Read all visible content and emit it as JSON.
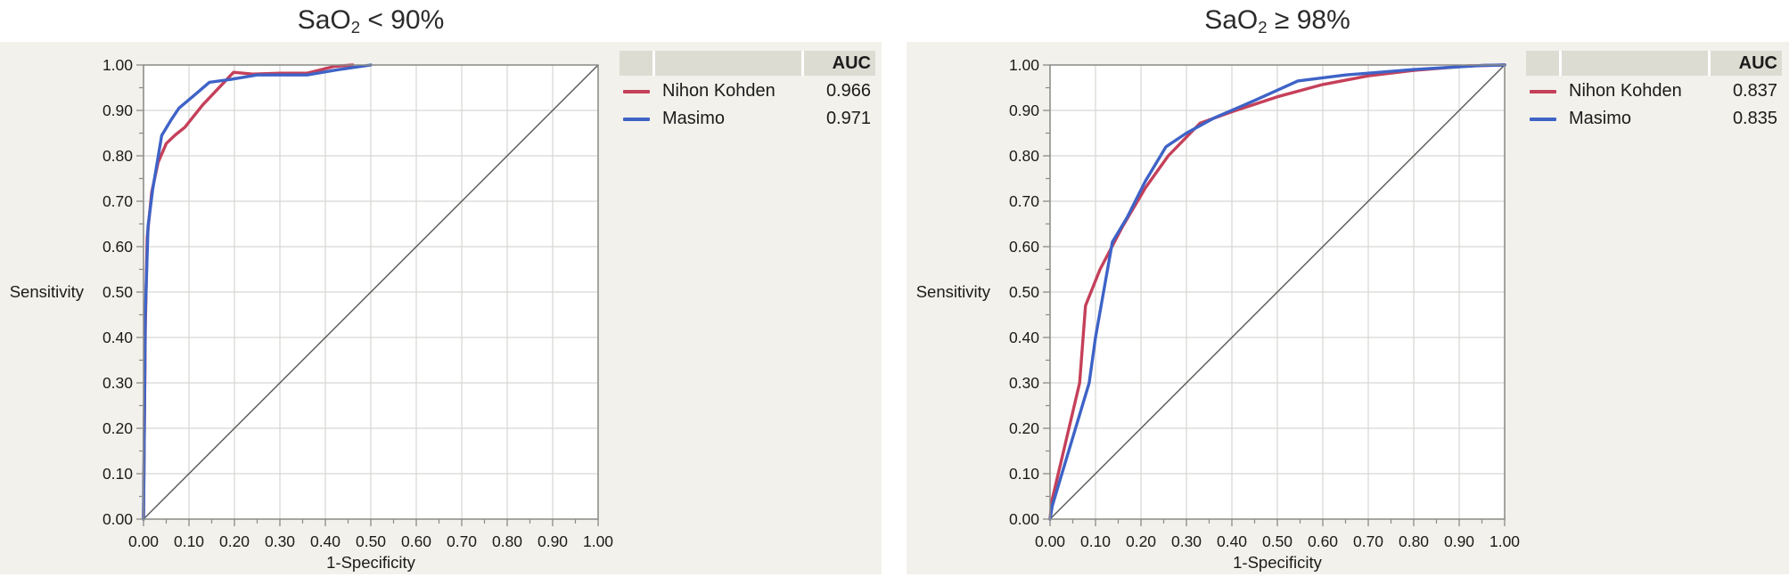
{
  "figure": {
    "background": "#ffffff",
    "panel_background": "#F2F1EB",
    "grid_color": "#D8D8D5",
    "frame_color": "#8B8B87",
    "diagonal_color": "#585858",
    "text_color": "#1b1b1b",
    "legend_header_bg": "#DDDCD3"
  },
  "chart_data": [
    {
      "type": "line",
      "title_base": "SaO",
      "title_sub": "2",
      "title_rest": " < 90%",
      "xlabel": "1-Specificity",
      "ylabel": "Sensitivity",
      "xlim": [
        0,
        1
      ],
      "ylim": [
        0,
        1
      ],
      "grid": true,
      "diagonal_reference": true,
      "legend_position": "right",
      "legend": {
        "auc_header": "AUC"
      },
      "x_ticks": [
        "0.00",
        "0.10",
        "0.20",
        "0.30",
        "0.40",
        "0.50",
        "0.60",
        "0.70",
        "0.80",
        "0.90",
        "1.00"
      ],
      "y_ticks": [
        "0.00",
        "0.10",
        "0.20",
        "0.30",
        "0.40",
        "0.50",
        "0.60",
        "0.70",
        "0.80",
        "0.90",
        "1.00"
      ],
      "series": [
        {
          "name": "Nihon Kohden",
          "auc": "0.966",
          "color": "#C5405A",
          "points": [
            [
              0,
              0
            ],
            [
              0.004,
              0.42
            ],
            [
              0.008,
              0.62
            ],
            [
              0.018,
              0.72
            ],
            [
              0.032,
              0.785
            ],
            [
              0.05,
              0.827
            ],
            [
              0.07,
              0.846
            ],
            [
              0.091,
              0.863
            ],
            [
              0.13,
              0.912
            ],
            [
              0.198,
              0.984
            ],
            [
              0.24,
              0.98
            ],
            [
              0.3,
              0.982
            ],
            [
              0.36,
              0.982
            ],
            [
              0.42,
              0.997
            ],
            [
              0.46,
              1
            ]
          ]
        },
        {
          "name": "Masimo",
          "auc": "0.971",
          "color": "#3E63C7",
          "points": [
            [
              0,
              0
            ],
            [
              0.004,
              0.45
            ],
            [
              0.01,
              0.645
            ],
            [
              0.02,
              0.725
            ],
            [
              0.04,
              0.845
            ],
            [
              0.06,
              0.878
            ],
            [
              0.078,
              0.905
            ],
            [
              0.11,
              0.932
            ],
            [
              0.145,
              0.962
            ],
            [
              0.19,
              0.968
            ],
            [
              0.25,
              0.978
            ],
            [
              0.36,
              0.978
            ],
            [
              0.43,
              0.99
            ],
            [
              0.5,
              1
            ]
          ]
        }
      ]
    },
    {
      "type": "line",
      "title_base": "SaO",
      "title_sub": "2",
      "title_rest": " ≥ 98%",
      "xlabel": "1-Specificity",
      "ylabel": "Sensitivity",
      "xlim": [
        0,
        1
      ],
      "ylim": [
        0,
        1
      ],
      "grid": true,
      "diagonal_reference": true,
      "legend_position": "right",
      "legend": {
        "auc_header": "AUC"
      },
      "x_ticks": [
        "0.00",
        "0.10",
        "0.20",
        "0.30",
        "0.40",
        "0.50",
        "0.60",
        "0.70",
        "0.80",
        "0.90",
        "1.00"
      ],
      "y_ticks": [
        "0.00",
        "0.10",
        "0.20",
        "0.30",
        "0.40",
        "0.50",
        "0.60",
        "0.70",
        "0.80",
        "0.90",
        "1.00"
      ],
      "series": [
        {
          "name": "Nihon Kohden",
          "auc": "0.837",
          "color": "#C5405A",
          "points": [
            [
              0,
              0
            ],
            [
              0.004,
              0.04
            ],
            [
              0.065,
              0.3
            ],
            [
              0.078,
              0.47
            ],
            [
              0.11,
              0.55
            ],
            [
              0.16,
              0.645
            ],
            [
              0.21,
              0.73
            ],
            [
              0.26,
              0.8
            ],
            [
              0.33,
              0.872
            ],
            [
              0.4,
              0.897
            ],
            [
              0.5,
              0.93
            ],
            [
              0.6,
              0.957
            ],
            [
              0.7,
              0.976
            ],
            [
              0.8,
              0.988
            ],
            [
              0.92,
              0.998
            ],
            [
              1,
              1
            ]
          ]
        },
        {
          "name": "Masimo",
          "auc": "0.835",
          "color": "#3E63C7",
          "points": [
            [
              0,
              0
            ],
            [
              0.005,
              0.03
            ],
            [
              0.086,
              0.3
            ],
            [
              0.1,
              0.4
            ],
            [
              0.137,
              0.61
            ],
            [
              0.17,
              0.665
            ],
            [
              0.21,
              0.745
            ],
            [
              0.255,
              0.82
            ],
            [
              0.3,
              0.85
            ],
            [
              0.36,
              0.883
            ],
            [
              0.45,
              0.922
            ],
            [
              0.545,
              0.965
            ],
            [
              0.65,
              0.978
            ],
            [
              0.8,
              0.99
            ],
            [
              0.95,
              0.999
            ],
            [
              1,
              1
            ]
          ]
        }
      ]
    }
  ]
}
